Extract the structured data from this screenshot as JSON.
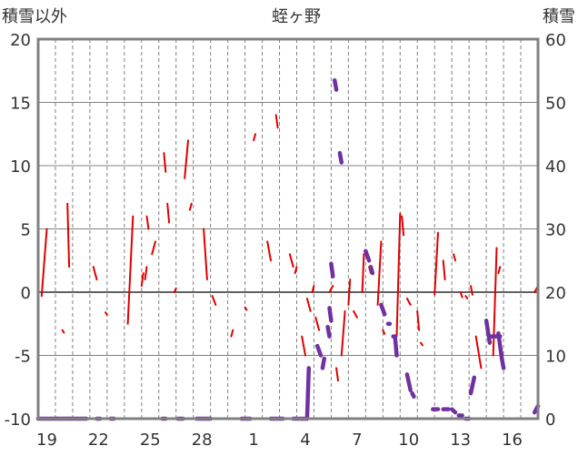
{
  "chart_data": {
    "type": "line",
    "title": "蛭ヶ野",
    "left_axis_label": "積雪以外",
    "right_axis_label": "積雪",
    "ylim_left": [
      -10,
      20
    ],
    "ylim_right": [
      0,
      60
    ],
    "y_ticks_left": [
      "20",
      "15",
      "10",
      "5",
      "0",
      "-5",
      "-10"
    ],
    "y_ticks_right": [
      "60",
      "50",
      "40",
      "30",
      "20",
      "10",
      "0"
    ],
    "x_ticks": [
      "19",
      "22",
      "25",
      "28",
      "1",
      "4",
      "7",
      "10",
      "13",
      "16"
    ],
    "x_tick_days": [
      1,
      4,
      7,
      10,
      13,
      16,
      19,
      22,
      25,
      28
    ],
    "day_count": 29,
    "grid": true,
    "colors": {
      "temperature": "#e00000",
      "snow_depth": "#7030a0",
      "frame": "#808080",
      "grid": "#808080",
      "zero_line": "#606060"
    },
    "series": [
      {
        "key": "temperature",
        "axis": "left",
        "segments": [
          [
            [
              0.2,
              -0.3
            ],
            [
              0.5,
              5.0
            ]
          ],
          [
            [
              1.4,
              -3.0
            ],
            [
              1.5,
              -3.2
            ]
          ],
          [
            [
              1.7,
              7.0
            ],
            [
              1.8,
              2.0
            ]
          ],
          [
            [
              3.2,
              2.0
            ],
            [
              3.4,
              1.0
            ]
          ],
          [
            [
              3.9,
              -1.6
            ],
            [
              4.0,
              -1.8
            ]
          ],
          [
            [
              5.2,
              -2.5
            ],
            [
              5.5,
              6.0
            ]
          ],
          [
            [
              6.0,
              0.5
            ],
            [
              6.1,
              1.5
            ]
          ],
          [
            [
              6.2,
              1.0
            ],
            [
              6.3,
              2.0
            ]
          ],
          [
            [
              6.3,
              6.0
            ],
            [
              6.4,
              5.0
            ]
          ],
          [
            [
              6.6,
              3.0
            ],
            [
              6.8,
              4.0
            ]
          ],
          [
            [
              7.3,
              11.0
            ],
            [
              7.4,
              9.5
            ]
          ],
          [
            [
              7.5,
              7.0
            ],
            [
              7.6,
              5.5
            ]
          ],
          [
            [
              7.9,
              0.0
            ],
            [
              8.0,
              0.3
            ]
          ],
          [
            [
              8.5,
              9.0
            ],
            [
              8.7,
              12.0
            ]
          ],
          [
            [
              8.8,
              6.5
            ],
            [
              8.9,
              7.0
            ]
          ],
          [
            [
              9.6,
              5.0
            ],
            [
              9.8,
              1.0
            ]
          ],
          [
            [
              10.1,
              -0.3
            ],
            [
              10.3,
              -1.0
            ]
          ],
          [
            [
              11.2,
              -3.5
            ],
            [
              11.3,
              -3.0
            ]
          ],
          [
            [
              12.0,
              -1.2
            ],
            [
              12.1,
              -1.4
            ]
          ],
          [
            [
              12.5,
              12.0
            ],
            [
              12.6,
              12.5
            ]
          ],
          [
            [
              13.3,
              4.0
            ],
            [
              13.5,
              2.5
            ]
          ],
          [
            [
              13.8,
              14.0
            ],
            [
              13.9,
              13.0
            ]
          ],
          [
            [
              14.6,
              3.0
            ],
            [
              14.8,
              2.0
            ]
          ],
          [
            [
              14.9,
              1.5
            ],
            [
              15.0,
              2.0
            ]
          ],
          [
            [
              15.3,
              -3.5
            ],
            [
              15.5,
              -5.0
            ]
          ],
          [
            [
              15.6,
              -0.5
            ],
            [
              15.8,
              -1.5
            ]
          ],
          [
            [
              15.9,
              0.0
            ],
            [
              16.0,
              0.5
            ]
          ],
          [
            [
              16.1,
              -2.0
            ],
            [
              16.3,
              -3.0
            ]
          ],
          [
            [
              16.9,
              0.0
            ],
            [
              17.1,
              0.5
            ]
          ],
          [
            [
              17.3,
              -6.0
            ],
            [
              17.4,
              -7.0
            ]
          ],
          [
            [
              17.6,
              -5.0
            ],
            [
              17.8,
              -1.5
            ]
          ],
          [
            [
              18.0,
              -1.0
            ],
            [
              18.1,
              1.0
            ]
          ],
          [
            [
              18.3,
              -1.5
            ],
            [
              18.5,
              -2.0
            ]
          ],
          [
            [
              18.8,
              0.0
            ],
            [
              18.9,
              3.0
            ]
          ],
          [
            [
              19.2,
              2.0
            ],
            [
              19.3,
              1.5
            ]
          ],
          [
            [
              19.7,
              -1.0
            ],
            [
              19.9,
              4.0
            ]
          ],
          [
            [
              20.0,
              -3.0
            ],
            [
              20.1,
              -3.3
            ]
          ],
          [
            [
              20.8,
              -3.5
            ],
            [
              21.0,
              6.2
            ]
          ],
          [
            [
              21.1,
              6.0
            ],
            [
              21.2,
              4.5
            ]
          ],
          [
            [
              21.4,
              -0.5
            ],
            [
              21.6,
              -1.0
            ]
          ],
          [
            [
              22.0,
              -1.5
            ],
            [
              22.1,
              -3.0
            ]
          ],
          [
            [
              22.2,
              -4.0
            ],
            [
              22.3,
              -4.2
            ]
          ],
          [
            [
              23.0,
              -0.2
            ],
            [
              23.2,
              4.7
            ]
          ],
          [
            [
              23.5,
              2.5
            ],
            [
              23.6,
              1.0
            ]
          ],
          [
            [
              24.1,
              3.0
            ],
            [
              24.2,
              2.5
            ]
          ],
          [
            [
              24.5,
              0.0
            ],
            [
              24.6,
              -0.4
            ]
          ],
          [
            [
              24.8,
              -0.3
            ],
            [
              24.9,
              -0.5
            ]
          ],
          [
            [
              25.1,
              0.5
            ],
            [
              25.2,
              -0.2
            ]
          ],
          [
            [
              25.4,
              -3.5
            ],
            [
              25.7,
              -6.0
            ]
          ],
          [
            [
              26.4,
              -5.0
            ],
            [
              26.6,
              3.5
            ]
          ],
          [
            [
              26.7,
              1.5
            ],
            [
              26.8,
              2.0
            ]
          ],
          [
            [
              28.8,
              0.0
            ],
            [
              29.0,
              0.5
            ]
          ]
        ]
      },
      {
        "key": "snow_depth",
        "axis": "right",
        "segments": [
          [
            [
              0.0,
              0.0
            ],
            [
              2.8,
              0.0
            ]
          ],
          [
            [
              3.4,
              0.0
            ],
            [
              3.6,
              0.0
            ]
          ],
          [
            [
              4.2,
              0.0
            ],
            [
              4.4,
              0.0
            ]
          ],
          [
            [
              7.2,
              0.0
            ],
            [
              7.4,
              0.0
            ]
          ],
          [
            [
              8.1,
              0.0
            ],
            [
              8.4,
              0.0
            ]
          ],
          [
            [
              9.2,
              0.0
            ],
            [
              10.0,
              0.0
            ]
          ],
          [
            [
              11.8,
              0.0
            ],
            [
              12.3,
              0.0
            ]
          ],
          [
            [
              13.5,
              0.0
            ],
            [
              14.2,
              0.0
            ]
          ],
          [
            [
              14.8,
              0.0
            ],
            [
              15.1,
              0.0
            ]
          ],
          [
            [
              15.2,
              0.0
            ],
            [
              15.6,
              0.0
            ]
          ],
          [
            [
              15.6,
              0.0
            ],
            [
              15.7,
              8.0
            ]
          ],
          [
            [
              16.2,
              11.5
            ],
            [
              16.4,
              10.0
            ]
          ],
          [
            [
              16.5,
              8.0
            ],
            [
              16.6,
              9.5
            ]
          ],
          [
            [
              16.8,
              14.5
            ],
            [
              16.9,
              13.0
            ]
          ],
          [
            [
              16.9,
              17.5
            ],
            [
              17.0,
              15.5
            ]
          ],
          [
            [
              17.0,
              24.5
            ],
            [
              17.1,
              22.5
            ]
          ],
          [
            [
              17.2,
              53.5
            ],
            [
              17.3,
              52.0
            ]
          ],
          [
            [
              17.5,
              42.0
            ],
            [
              17.6,
              40.5
            ]
          ],
          [
            [
              19.0,
              26.5
            ],
            [
              19.2,
              25.0
            ]
          ],
          [
            [
              19.3,
              24.0
            ],
            [
              19.4,
              23.0
            ]
          ],
          [
            [
              19.9,
              18.0
            ],
            [
              20.1,
              16.5
            ]
          ],
          [
            [
              20.3,
              15.0
            ],
            [
              20.4,
              15.0
            ]
          ],
          [
            [
              20.6,
              13.0
            ],
            [
              20.7,
              13.0
            ]
          ],
          [
            [
              20.7,
              13.0
            ],
            [
              20.8,
              10.0
            ]
          ],
          [
            [
              21.4,
              7.0
            ],
            [
              21.6,
              4.5
            ]
          ],
          [
            [
              21.7,
              4.0
            ],
            [
              21.8,
              3.5
            ]
          ],
          [
            [
              22.9,
              1.5
            ],
            [
              23.2,
              1.5
            ]
          ],
          [
            [
              23.5,
              1.5
            ],
            [
              23.8,
              1.5
            ]
          ],
          [
            [
              24.0,
              1.5
            ],
            [
              24.2,
              1.0
            ]
          ],
          [
            [
              24.4,
              0.5
            ],
            [
              24.6,
              0.5
            ]
          ],
          [
            [
              24.8,
              0.0
            ],
            [
              25.0,
              0.0
            ]
          ],
          [
            [
              25.1,
              4.0
            ],
            [
              25.3,
              6.5
            ]
          ],
          [
            [
              26.0,
              15.5
            ],
            [
              26.2,
              12.0
            ]
          ],
          [
            [
              26.3,
              13.0
            ],
            [
              26.8,
              13.0
            ]
          ],
          [
            [
              26.7,
              13.5
            ],
            [
              26.9,
              9.5
            ]
          ],
          [
            [
              26.9,
              9.5
            ],
            [
              27.0,
              8.0
            ]
          ],
          [
            [
              28.8,
              1.0
            ],
            [
              29.0,
              2.0
            ]
          ]
        ]
      }
    ]
  }
}
